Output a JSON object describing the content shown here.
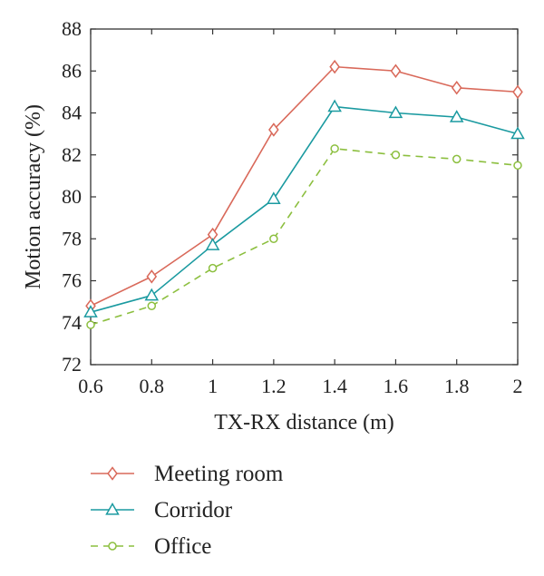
{
  "chart_data": {
    "type": "line",
    "xlabel": "TX-RX distance (m)",
    "ylabel": "Motion accuracy (%)",
    "x": [
      0.6,
      0.8,
      1.0,
      1.2,
      1.4,
      1.6,
      1.8,
      2.0
    ],
    "xticks": [
      "0.6",
      "0.8",
      "1",
      "1.2",
      "1.4",
      "1.6",
      "1.8",
      "2"
    ],
    "xlim": [
      0.6,
      2.0
    ],
    "ylim": [
      72,
      88
    ],
    "yticks": [
      "72",
      "74",
      "76",
      "78",
      "80",
      "82",
      "84",
      "86",
      "88"
    ],
    "grid": false,
    "legend_position": "bottom-outside",
    "series": [
      {
        "name": "Meeting room",
        "values": [
          74.8,
          76.2,
          78.2,
          83.2,
          86.2,
          86.0,
          85.2,
          85.0
        ],
        "color": "#d9695a",
        "marker": "diamond",
        "line_style": "solid"
      },
      {
        "name": "Corridor",
        "values": [
          74.5,
          75.3,
          77.7,
          79.9,
          84.3,
          84.0,
          83.8,
          83.0
        ],
        "color": "#1a9aa0",
        "marker": "triangle",
        "line_style": "solid"
      },
      {
        "name": "Office",
        "values": [
          73.9,
          74.8,
          76.6,
          78.0,
          82.3,
          82.0,
          81.8,
          81.5
        ],
        "color": "#8cbf3f",
        "marker": "circle",
        "line_style": "dashed"
      }
    ]
  }
}
